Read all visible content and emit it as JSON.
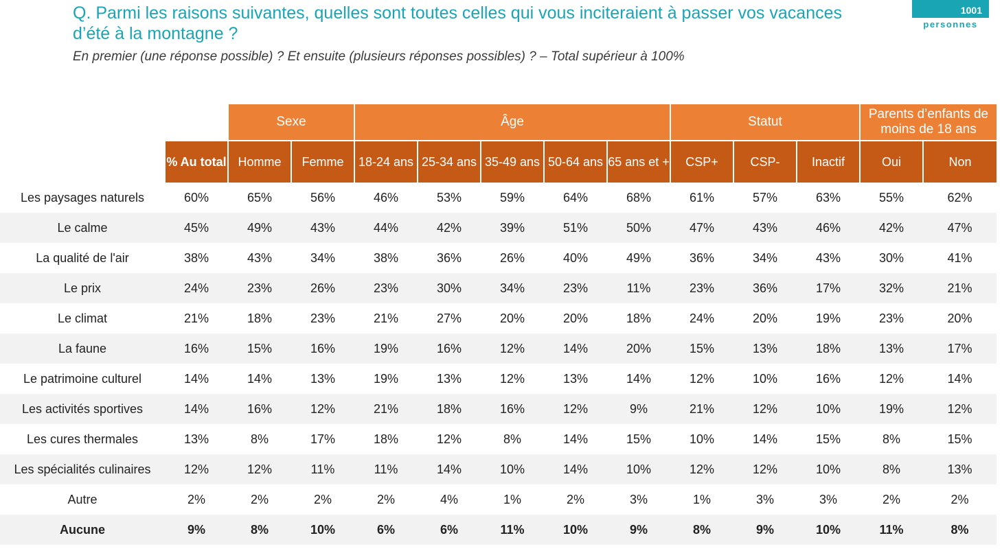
{
  "header": {
    "question": "Q. Parmi les raisons suivantes, quelles sont toutes celles qui vous inciteraient à passer vos vacances d’été à la montagne ?",
    "subtitle": "En premier (une réponse possible) ? Et ensuite (plusieurs réponses possibles) ? – Total supérieur à 100%",
    "badge_number": "1001",
    "badge_label": "personnes"
  },
  "colors": {
    "title": "#1aa5b5",
    "group_header": "#ec8035",
    "sub_header": "#c55a17",
    "alt_row": "#f2f2f2"
  },
  "table": {
    "groups": [
      {
        "label": "Sexe"
      },
      {
        "label": "Âge"
      },
      {
        "label": "Statut"
      },
      {
        "label": "Parents d’enfants de moins de 18 ans"
      }
    ],
    "total_header": "% Au total",
    "columns": [
      "Homme",
      "Femme",
      "18-24 ans",
      "25-34 ans",
      "35-49 ans",
      "50-64 ans",
      "65 ans et +",
      "CSP+",
      "CSP-",
      "Inactif",
      "Oui",
      "Non"
    ],
    "rows": [
      {
        "label": "Les paysages naturels",
        "total": "60%",
        "values": [
          "65%",
          "56%",
          "46%",
          "53%",
          "59%",
          "64%",
          "68%",
          "61%",
          "57%",
          "63%",
          "55%",
          "62%"
        ]
      },
      {
        "label": "Le calme",
        "total": "45%",
        "values": [
          "49%",
          "43%",
          "44%",
          "42%",
          "39%",
          "51%",
          "50%",
          "47%",
          "43%",
          "46%",
          "42%",
          "47%"
        ]
      },
      {
        "label": "La qualité de l'air",
        "total": "38%",
        "values": [
          "43%",
          "34%",
          "38%",
          "36%",
          "26%",
          "40%",
          "49%",
          "36%",
          "34%",
          "43%",
          "30%",
          "41%"
        ]
      },
      {
        "label": "Le prix",
        "total": "24%",
        "values": [
          "23%",
          "26%",
          "23%",
          "30%",
          "34%",
          "23%",
          "11%",
          "23%",
          "36%",
          "17%",
          "32%",
          "21%"
        ]
      },
      {
        "label": "Le climat",
        "total": "21%",
        "values": [
          "18%",
          "23%",
          "21%",
          "27%",
          "20%",
          "20%",
          "18%",
          "24%",
          "20%",
          "19%",
          "23%",
          "20%"
        ]
      },
      {
        "label": "La faune",
        "total": "16%",
        "values": [
          "15%",
          "16%",
          "19%",
          "16%",
          "12%",
          "14%",
          "20%",
          "15%",
          "13%",
          "18%",
          "13%",
          "17%"
        ]
      },
      {
        "label": "Le patrimoine culturel",
        "total": "14%",
        "values": [
          "14%",
          "13%",
          "19%",
          "13%",
          "12%",
          "13%",
          "14%",
          "12%",
          "10%",
          "16%",
          "12%",
          "14%"
        ]
      },
      {
        "label": "Les activités sportives",
        "total": "14%",
        "values": [
          "16%",
          "12%",
          "21%",
          "18%",
          "16%",
          "12%",
          "9%",
          "21%",
          "12%",
          "10%",
          "19%",
          "12%"
        ]
      },
      {
        "label": "Les cures thermales",
        "total": "13%",
        "values": [
          "8%",
          "17%",
          "18%",
          "12%",
          "8%",
          "14%",
          "15%",
          "10%",
          "14%",
          "15%",
          "8%",
          "15%"
        ]
      },
      {
        "label": "Les spécialités culinaires",
        "total": "12%",
        "values": [
          "12%",
          "11%",
          "11%",
          "14%",
          "10%",
          "14%",
          "10%",
          "12%",
          "12%",
          "10%",
          "8%",
          "13%"
        ]
      },
      {
        "label": "Autre",
        "total": "2%",
        "values": [
          "2%",
          "2%",
          "2%",
          "4%",
          "1%",
          "2%",
          "3%",
          "1%",
          "3%",
          "3%",
          "2%",
          "2%"
        ]
      },
      {
        "label": "Aucune",
        "total": "9%",
        "values": [
          "8%",
          "10%",
          "6%",
          "6%",
          "11%",
          "10%",
          "9%",
          "8%",
          "9%",
          "10%",
          "11%",
          "8%"
        ]
      }
    ]
  }
}
